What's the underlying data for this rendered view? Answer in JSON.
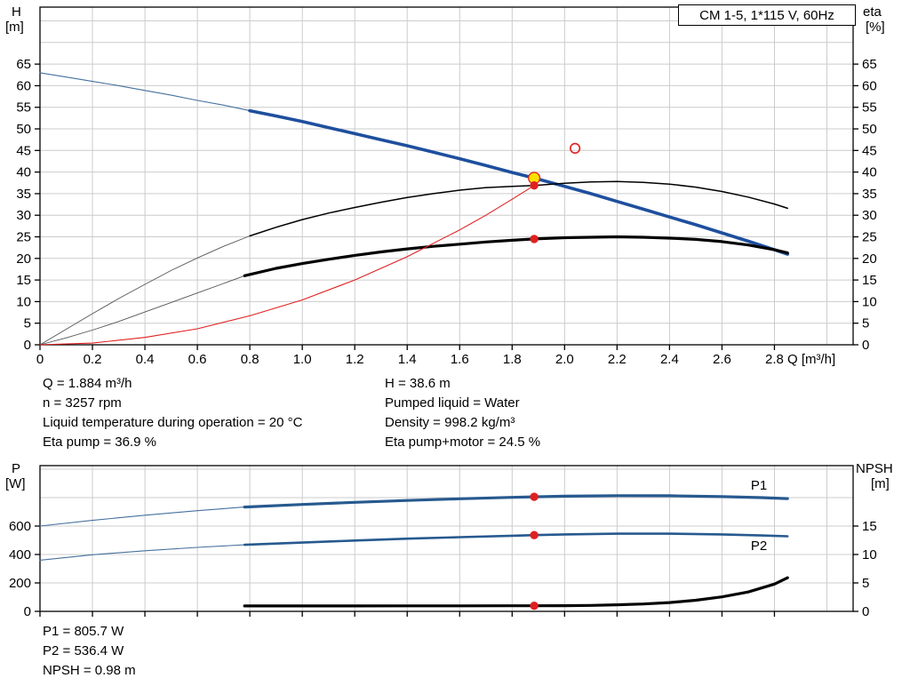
{
  "info": {
    "left": [
      "Q = 1.884 m³/h",
      "n = 3257 rpm",
      "Liquid temperature during operation = 20 °C",
      "Eta pump = 36.9 %"
    ],
    "right": [
      "H = 38.6 m",
      "Pumped liquid = Water",
      "Density = 998.2 kg/m³",
      "Eta pump+motor = 24.5 %"
    ],
    "power": [
      "P1 = 805.7 W",
      "P2 = 536.4 W",
      "NPSH = 0.98 m"
    ]
  },
  "chart_data": [
    {
      "type": "line",
      "name": "hq-eta-chart",
      "title": "CM 1-5, 1*115 V, 60Hz",
      "grid_color": "#cccccc",
      "x": {
        "label": "Q [m³/h]",
        "min": 0,
        "max": 3.1,
        "ticks": [
          0,
          0.2,
          0.4,
          0.6,
          0.8,
          1,
          1.2,
          1.4,
          1.6,
          1.8,
          2,
          2.2,
          2.4,
          2.6,
          2.8
        ],
        "tick_labels": [
          "0",
          "0.2",
          "0.4",
          "0.6",
          "0.8",
          "1.0",
          "1.2",
          "1.4",
          "1.6",
          "1.8",
          "2.0",
          "2.2",
          "2.4",
          "2.6",
          "2.8"
        ],
        "grid": [
          0.2,
          0.4,
          0.6,
          0.8,
          1,
          1.2,
          1.4,
          1.6,
          1.8,
          2,
          2.2,
          2.4,
          2.6,
          2.8,
          3
        ]
      },
      "y_left": {
        "title": "H",
        "unit": "[m]",
        "min": 0,
        "max": 78.2,
        "ticks": [
          0,
          5,
          10,
          15,
          20,
          25,
          30,
          35,
          40,
          45,
          50,
          55,
          60,
          65
        ],
        "grid": [
          5,
          10,
          15,
          20,
          25,
          30,
          35,
          40,
          45,
          50,
          55,
          60,
          65,
          70,
          75
        ]
      },
      "y_right": {
        "title": "eta",
        "unit": "[%]",
        "min": 0,
        "max": 78.2,
        "ticks": [
          0,
          5,
          10,
          15,
          20,
          25,
          30,
          35,
          40,
          45,
          50,
          55,
          60,
          65
        ]
      },
      "series": [
        {
          "name": "pump-curve-lead",
          "axis": "left",
          "color": "#46719f",
          "width": 1.1,
          "points": [
            [
              0,
              63
            ],
            [
              0.1,
              62.0
            ],
            [
              0.2,
              61.0
            ],
            [
              0.3,
              60.0
            ],
            [
              0.4,
              58.9
            ],
            [
              0.5,
              57.8
            ],
            [
              0.6,
              56.6
            ],
            [
              0.7,
              55.5
            ],
            [
              0.8,
              54.2
            ]
          ]
        },
        {
          "name": "pump-curve",
          "axis": "left",
          "color": "#1e4f9e",
          "width": 3.6,
          "points": [
            [
              0.8,
              54.2
            ],
            [
              0.9,
              53.0
            ],
            [
              1.0,
              51.7
            ],
            [
              1.1,
              50.3
            ],
            [
              1.2,
              48.9
            ],
            [
              1.3,
              47.5
            ],
            [
              1.4,
              46.1
            ],
            [
              1.5,
              44.6
            ],
            [
              1.6,
              43.1
            ],
            [
              1.7,
              41.5
            ],
            [
              1.8,
              39.9
            ],
            [
              1.884,
              38.6
            ],
            [
              2.0,
              36.7
            ],
            [
              2.1,
              35.0
            ],
            [
              2.2,
              33.2
            ],
            [
              2.3,
              31.4
            ],
            [
              2.4,
              29.6
            ],
            [
              2.5,
              27.8
            ],
            [
              2.6,
              25.9
            ],
            [
              2.7,
              24.0
            ],
            [
              2.8,
              22.0
            ],
            [
              2.85,
              21.0
            ]
          ]
        },
        {
          "name": "eta-pump-lead",
          "axis": "right",
          "color": "#555555",
          "width": 0.9,
          "points": [
            [
              0,
              0
            ],
            [
              0.1,
              3.6
            ],
            [
              0.2,
              7.2
            ],
            [
              0.3,
              10.7
            ],
            [
              0.4,
              14.0
            ],
            [
              0.5,
              17.2
            ],
            [
              0.6,
              20.1
            ],
            [
              0.7,
              22.8
            ],
            [
              0.8,
              25.2
            ]
          ]
        },
        {
          "name": "eta-pump-curve",
          "axis": "right",
          "color": "#000000",
          "width": 1.5,
          "points": [
            [
              0.8,
              25.2
            ],
            [
              0.9,
              27.2
            ],
            [
              1.0,
              29.0
            ],
            [
              1.1,
              30.5
            ],
            [
              1.2,
              31.8
            ],
            [
              1.3,
              33.0
            ],
            [
              1.4,
              34.1
            ],
            [
              1.5,
              35.0
            ],
            [
              1.6,
              35.8
            ],
            [
              1.7,
              36.4
            ],
            [
              1.8,
              36.7
            ],
            [
              1.884,
              36.9
            ],
            [
              2.0,
              37.4
            ],
            [
              2.1,
              37.7
            ],
            [
              2.2,
              37.8
            ],
            [
              2.3,
              37.6
            ],
            [
              2.4,
              37.2
            ],
            [
              2.5,
              36.5
            ],
            [
              2.6,
              35.5
            ],
            [
              2.7,
              34.2
            ],
            [
              2.8,
              32.6
            ],
            [
              2.85,
              31.6
            ]
          ]
        },
        {
          "name": "eta-pump-motor-lead",
          "axis": "right",
          "color": "#555555",
          "width": 0.9,
          "points": [
            [
              0,
              0
            ],
            [
              0.1,
              1.6
            ],
            [
              0.2,
              3.4
            ],
            [
              0.3,
              5.4
            ],
            [
              0.4,
              7.6
            ],
            [
              0.5,
              9.8
            ],
            [
              0.6,
              12.0
            ],
            [
              0.7,
              14.2
            ],
            [
              0.78,
              16.0
            ]
          ]
        },
        {
          "name": "eta-pump-motor-curve",
          "axis": "right",
          "color": "#000000",
          "width": 3.2,
          "points": [
            [
              0.78,
              16.0
            ],
            [
              0.9,
              17.7
            ],
            [
              1.0,
              18.8
            ],
            [
              1.1,
              19.8
            ],
            [
              1.2,
              20.7
            ],
            [
              1.3,
              21.5
            ],
            [
              1.4,
              22.2
            ],
            [
              1.5,
              22.8
            ],
            [
              1.6,
              23.3
            ],
            [
              1.7,
              23.8
            ],
            [
              1.8,
              24.2
            ],
            [
              1.884,
              24.5
            ],
            [
              2.0,
              24.8
            ],
            [
              2.1,
              24.9
            ],
            [
              2.2,
              25.0
            ],
            [
              2.3,
              24.9
            ],
            [
              2.4,
              24.7
            ],
            [
              2.5,
              24.4
            ],
            [
              2.6,
              23.9
            ],
            [
              2.7,
              23.1
            ],
            [
              2.8,
              22.0
            ],
            [
              2.85,
              21.3
            ]
          ]
        },
        {
          "name": "system-curve",
          "axis": "left",
          "color": "#e02020",
          "width": 1.1,
          "points": [
            [
              0,
              0
            ],
            [
              0.2,
              0.4
            ],
            [
              0.4,
              1.7
            ],
            [
              0.6,
              3.7
            ],
            [
              0.8,
              6.7
            ],
            [
              1.0,
              10.4
            ],
            [
              1.2,
              15.0
            ],
            [
              1.4,
              20.4
            ],
            [
              1.6,
              26.6
            ],
            [
              1.7,
              30.0
            ],
            [
              1.8,
              33.7
            ],
            [
              1.884,
              36.9
            ]
          ]
        }
      ],
      "markers": [
        {
          "name": "duty-point-h",
          "x": 1.884,
          "y": 38.6,
          "axis": "left",
          "style": "yellow-dot"
        },
        {
          "name": "duty-point-eta-pump",
          "x": 1.884,
          "y": 36.9,
          "axis": "right",
          "style": "red-dot"
        },
        {
          "name": "duty-point-eta-pump-motor",
          "x": 1.884,
          "y": 24.5,
          "axis": "right",
          "style": "red-dot"
        },
        {
          "name": "requested-duty-point",
          "x": 2.04,
          "y": 45.5,
          "axis": "left",
          "style": "red-ring"
        }
      ],
      "labels": []
    },
    {
      "type": "line",
      "name": "power-npsh-chart",
      "title": "",
      "grid_color": "#cccccc",
      "x": {
        "label": "",
        "min": 0,
        "max": 3.1,
        "ticks": [
          0,
          0.2,
          0.4,
          0.6,
          0.8,
          1,
          1.2,
          1.4,
          1.6,
          1.8,
          2,
          2.2,
          2.4,
          2.6,
          2.8
        ],
        "tick_labels": [],
        "grid": [
          0.2,
          0.4,
          0.6,
          0.8,
          1,
          1.2,
          1.4,
          1.6,
          1.8,
          2,
          2.2,
          2.4,
          2.6,
          2.8,
          3
        ]
      },
      "y_left": {
        "title": "P",
        "unit": "[W]",
        "min": 0,
        "max": 1025,
        "ticks": [
          0,
          200,
          400,
          600
        ],
        "grid": [
          200,
          400,
          600,
          800,
          1000
        ]
      },
      "y_right": {
        "title": "NPSH",
        "unit": "[m]",
        "min": 0,
        "max": 25.625,
        "ticks": [
          0,
          5,
          10,
          15
        ]
      },
      "series": [
        {
          "name": "p1-lead",
          "axis": "left",
          "color": "#46719f",
          "width": 1.1,
          "points": [
            [
              0,
              600
            ],
            [
              0.2,
              640
            ],
            [
              0.4,
              676
            ],
            [
              0.6,
              708
            ],
            [
              0.78,
              734
            ]
          ]
        },
        {
          "name": "p1-curve",
          "axis": "left",
          "color": "#27598f",
          "width": 3.2,
          "points": [
            [
              0.78,
              734
            ],
            [
              1.0,
              752
            ],
            [
              1.2,
              767
            ],
            [
              1.4,
              780
            ],
            [
              1.6,
              792
            ],
            [
              1.8,
              802
            ],
            [
              1.884,
              805.7
            ],
            [
              2.0,
              810
            ],
            [
              2.2,
              814
            ],
            [
              2.4,
              813
            ],
            [
              2.6,
              807
            ],
            [
              2.75,
              800
            ],
            [
              2.85,
              793
            ]
          ]
        },
        {
          "name": "p2-lead",
          "axis": "left",
          "color": "#46719f",
          "width": 1.1,
          "points": [
            [
              0,
              360
            ],
            [
              0.2,
              398
            ],
            [
              0.4,
              426
            ],
            [
              0.6,
              450
            ],
            [
              0.78,
              468
            ]
          ]
        },
        {
          "name": "p2-curve",
          "axis": "left",
          "color": "#27598f",
          "width": 2.6,
          "points": [
            [
              0.78,
              468
            ],
            [
              1.0,
              484
            ],
            [
              1.2,
              498
            ],
            [
              1.4,
              511
            ],
            [
              1.6,
              522
            ],
            [
              1.8,
              532
            ],
            [
              1.884,
              536.4
            ],
            [
              2.0,
              541
            ],
            [
              2.2,
              546
            ],
            [
              2.4,
              546
            ],
            [
              2.6,
              541
            ],
            [
              2.75,
              534
            ],
            [
              2.85,
              528
            ]
          ]
        },
        {
          "name": "npsh-curve",
          "axis": "right",
          "color": "#000000",
          "width": 3.2,
          "points": [
            [
              0.78,
              0.95
            ],
            [
              1.0,
              0.96
            ],
            [
              1.2,
              0.96
            ],
            [
              1.4,
              0.97
            ],
            [
              1.6,
              0.97
            ],
            [
              1.8,
              0.98
            ],
            [
              1.884,
              0.98
            ],
            [
              2.0,
              1.0
            ],
            [
              2.1,
              1.05
            ],
            [
              2.2,
              1.15
            ],
            [
              2.3,
              1.3
            ],
            [
              2.4,
              1.55
            ],
            [
              2.5,
              1.95
            ],
            [
              2.6,
              2.55
            ],
            [
              2.7,
              3.4
            ],
            [
              2.8,
              4.8
            ],
            [
              2.85,
              5.9
            ]
          ]
        }
      ],
      "markers": [
        {
          "name": "duty-point-p1",
          "x": 1.884,
          "y": 805.7,
          "axis": "left",
          "style": "red-dot"
        },
        {
          "name": "duty-point-p2",
          "x": 1.884,
          "y": 536.4,
          "axis": "left",
          "style": "red-dot"
        },
        {
          "name": "duty-point-npsh",
          "x": 1.884,
          "y": 0.98,
          "axis": "right",
          "style": "red-dot"
        }
      ],
      "labels": [
        {
          "name": "p1-curve-label",
          "text": "P1",
          "x": 2.71,
          "y": 856,
          "axis": "left",
          "color": "#27598f"
        },
        {
          "name": "p2-curve-label",
          "text": "P2",
          "x": 2.71,
          "y": 430,
          "axis": "left",
          "color": "#27598f"
        }
      ]
    }
  ]
}
